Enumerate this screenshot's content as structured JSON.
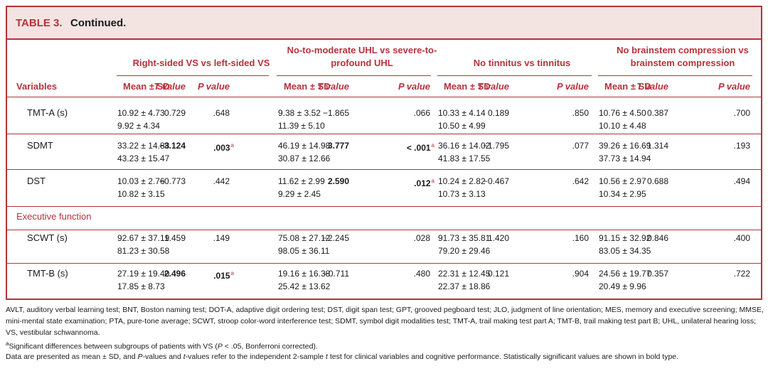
{
  "table": {
    "title_label": "TABLE 3.",
    "title_text": "Continued.",
    "groups": [
      "Right-sided VS vs left-sided VS",
      "No-to-moderate UHL vs severe-to-profound UHL",
      "No tinnitus vs tinnitus",
      "No brainstem compression vs brainstem compression"
    ],
    "col_variables": "Variables",
    "col_mean": "Mean ± SD",
    "col_t": "T value",
    "col_p": "P value",
    "section_exec": "Executive function",
    "rows": [
      {
        "var": "TMT-A (s)",
        "g": [
          {
            "m1": "10.92 ± 4.73",
            "m2": "9.92 ± 4.34",
            "t": "0.729",
            "p": ".648"
          },
          {
            "m1": "9.38 ± 3.52",
            "m2": "11.39 ± 5.10",
            "t": "−1.865",
            "p": ".066"
          },
          {
            "m1": "10.33 ± 4.14",
            "m2": "10.50 ± 4.99",
            "t": "0.189",
            "p": ".850"
          },
          {
            "m1": "10.76 ± 4.50",
            "m2": "10.10 ± 4.48",
            "t": "0.387",
            "p": ".700"
          }
        ]
      },
      {
        "var": "SDMT",
        "g": [
          {
            "m1": "33.22 ± 14.88",
            "m2": "43.23 ± 15.47",
            "t": "−3.124",
            "p": ".003",
            "sup": "a"
          },
          {
            "m1": "46.19 ± 14.98",
            "m2": "30.87 ± 12.66",
            "t": "3.777",
            "p": "< .001",
            "sup": "a"
          },
          {
            "m1": "36.16 ± 14.02",
            "m2": "41.83 ± 17.55",
            "t": "−1.795",
            "p": ".077"
          },
          {
            "m1": "39.26 ± 16.69",
            "m2": "37.73 ± 14.94",
            "t": "1.314",
            "p": ".193"
          }
        ]
      },
      {
        "var": "DST",
        "g": [
          {
            "m1": "10.03 ± 2.76",
            "m2": "10.82 ± 3.15",
            "t": "−0.773",
            "p": ".442"
          },
          {
            "m1": "11.62 ± 2.99",
            "m2": "9.29 ± 2.45",
            "t": "2.590",
            "p": ".012",
            "sup": "a"
          },
          {
            "m1": "10.24 ± 2.82",
            "m2": "10.73 ± 3.13",
            "t": "−0.467",
            "p": ".642"
          },
          {
            "m1": "10.56 ± 2.97",
            "m2": "10.34 ± 2.95",
            "t": "0.688",
            "p": ".494"
          }
        ]
      },
      {
        "var": "SCWT (s)",
        "g": [
          {
            "m1": "92.67 ± 37.19",
            "m2": "81.23 ± 30.58",
            "t": "1.459",
            "p": ".149"
          },
          {
            "m1": "75.08 ± 27.12",
            "m2": "98.05 ± 36.11",
            "t": "−2.245",
            "p": ".028"
          },
          {
            "m1": "91.73 ± 35.81",
            "m2": "79.20 ± 29.46",
            "t": "1.420",
            "p": ".160"
          },
          {
            "m1": "91.15 ± 32.92",
            "m2": "83.05 ± 34.35",
            "t": "0.846",
            "p": ".400"
          }
        ]
      },
      {
        "var": "TMT-B (s)",
        "g": [
          {
            "m1": "27.19 ± 19.40",
            "m2": "17.85 ± 8.73",
            "t": "2.496",
            "p": ".015",
            "sup": "a"
          },
          {
            "m1": "19.16 ± 16.38",
            "m2": "25.42 ± 13.62",
            "t": "−0.711",
            "p": ".480"
          },
          {
            "m1": "22.31 ± 12.45",
            "m2": "22.37 ± 18.86",
            "t": "0.121",
            "p": ".904"
          },
          {
            "m1": "24.56 ± 19.77",
            "m2": "20.49 ± 9.96",
            "t": "0.357",
            "p": ".722"
          }
        ]
      }
    ]
  },
  "footnotes": {
    "abbrev": "AVLT, auditory verbal learning test; BNT, Boston naming test; DOT-A, adaptive digit ordering test; DST, digit span test; GPT, grooved pegboard test; JLO, judgment of line orientation; MES, memory and executive screening; MMSE, mini-mental state examination; PTA, pure-tone average; SCWT, stroop color-word interference test; SDMT, symbol digit modalities test; TMT-A, trail making test part A; TMT-B, trail making test part B; UHL, unilateral hearing loss; VS, vestibular schwannoma.",
    "sig_marker": "a",
    "sig_text_1": "Significant differences between subgroups of patients with VS (",
    "sig_p": "P",
    "sig_text_2": " < .05, Bonferroni corrected).",
    "data_text_1": "Data are presented as mean ± SD, and ",
    "data_p": "P",
    "data_text_2": "-values and ",
    "data_t": "t",
    "data_text_3": "-values refer to the independent 2-sample ",
    "data_t2": "t",
    "data_text_4": " test for clinical variables and cognitive performance. Statistically significant values are shown in bold type."
  },
  "colors": {
    "accent": "#b5333c",
    "title_bg": "#f3e4e2"
  }
}
